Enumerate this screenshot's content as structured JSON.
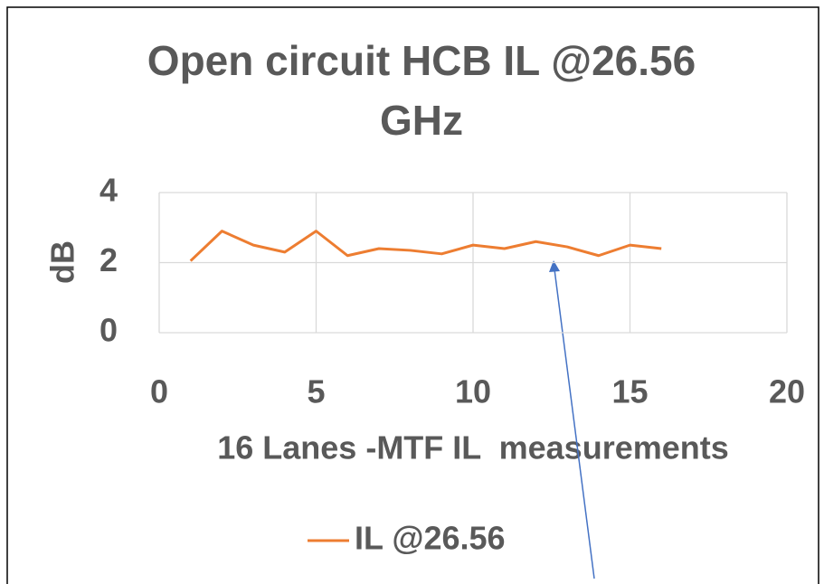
{
  "chart_data": {
    "type": "line",
    "title": "Open circuit HCB IL @26.56 GHz",
    "x_label": "16 Lanes -MTF IL  measurements",
    "y_label": "dB",
    "x": [
      1,
      2,
      3,
      4,
      5,
      6,
      7,
      8,
      9,
      10,
      11,
      12,
      13,
      14,
      15,
      16
    ],
    "series": [
      {
        "name": "IL @26.56",
        "color": "#ed7d31",
        "values": [
          2.05,
          2.9,
          2.5,
          2.3,
          2.9,
          2.2,
          2.4,
          2.35,
          2.25,
          2.5,
          2.4,
          2.6,
          2.45,
          2.2,
          2.5,
          2.4
        ]
      }
    ],
    "xlim": [
      0,
      20
    ],
    "xticks": [
      0,
      5,
      10,
      15,
      20
    ],
    "ylim": [
      0,
      4
    ],
    "yticks": [
      0,
      2,
      4
    ],
    "grid": true,
    "legend": "bottom"
  }
}
